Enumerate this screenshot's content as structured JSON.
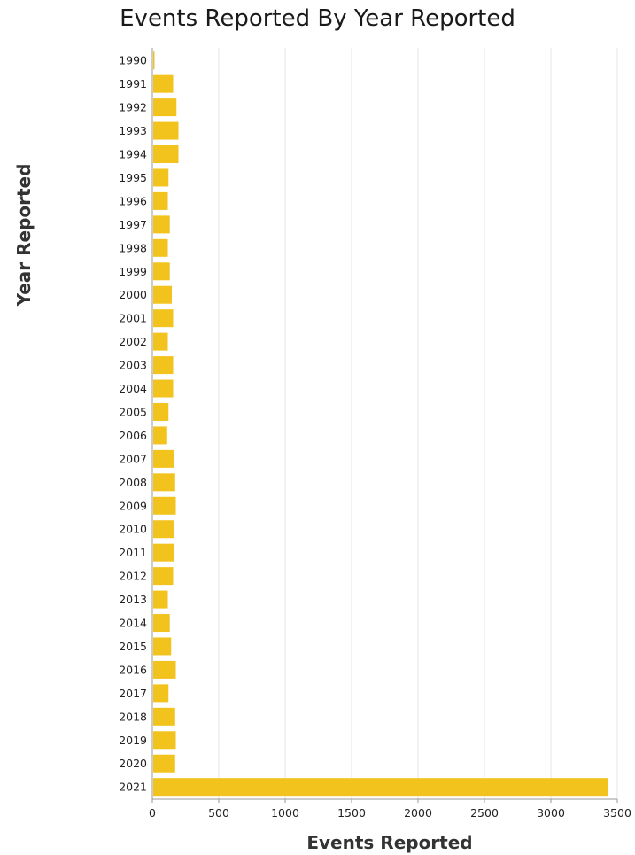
{
  "chart_data": {
    "type": "bar",
    "orientation": "horizontal",
    "title": "Events Reported By Year Reported",
    "xlabel": "Events Reported",
    "ylabel": "Year Reported",
    "categories": [
      "1990",
      "1991",
      "1992",
      "1993",
      "1994",
      "1995",
      "1996",
      "1997",
      "1998",
      "1999",
      "2000",
      "2001",
      "2002",
      "2003",
      "2004",
      "2005",
      "2006",
      "2007",
      "2008",
      "2009",
      "2010",
      "2011",
      "2012",
      "2013",
      "2014",
      "2015",
      "2016",
      "2017",
      "2018",
      "2019",
      "2020",
      "2021"
    ],
    "values": [
      10,
      150,
      175,
      190,
      190,
      115,
      110,
      125,
      110,
      125,
      140,
      150,
      110,
      150,
      150,
      115,
      105,
      160,
      165,
      170,
      155,
      160,
      150,
      110,
      125,
      135,
      170,
      115,
      165,
      170,
      165,
      3420
    ],
    "xlim": [
      0,
      3500
    ],
    "xticks": [
      0,
      500,
      1000,
      1500,
      2000,
      2500,
      3000,
      3500
    ],
    "xtick_labels": [
      "0",
      "500",
      "1000",
      "1500",
      "2000",
      "2500",
      "3000",
      "3500"
    ],
    "grid": "vertical",
    "bar_color": "#f2c31d",
    "grid_color": "#e4e4e4",
    "axis_color": "#999999"
  }
}
